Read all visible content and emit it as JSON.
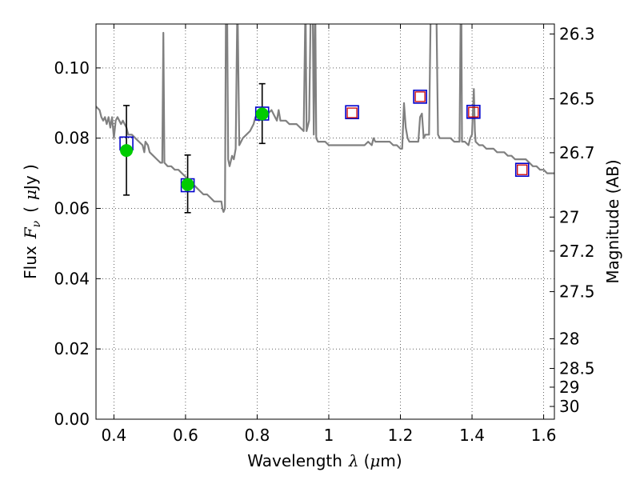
{
  "chart_data": {
    "type": "scatter",
    "xlabel": {
      "prefix": "Wavelength",
      "symbol": "λ",
      "unit_open": "(",
      "unit_mu": "μ",
      "unit_rest": "m)"
    },
    "ylabel": {
      "prefix": "Flux",
      "symbol": "F",
      "subscript": "ν",
      "unit_open": "(",
      "unit_mu": "μ",
      "unit_rest": "Jy )"
    },
    "y2label": "Magnitude (AB)",
    "xlim": [
      0.35,
      1.63
    ],
    "ylim": [
      0.0,
      0.1125
    ],
    "grid": true,
    "x_ticks": [
      {
        "value": 0.4,
        "label": "0.4"
      },
      {
        "value": 0.6,
        "label": "0.6"
      },
      {
        "value": 0.8,
        "label": "0.8"
      },
      {
        "value": 1.0,
        "label": "1"
      },
      {
        "value": 1.2,
        "label": "1.2"
      },
      {
        "value": 1.4,
        "label": "1.4"
      },
      {
        "value": 1.6,
        "label": "1.6"
      }
    ],
    "y_ticks": [
      {
        "value": 0.0,
        "label": "0.00"
      },
      {
        "value": 0.02,
        "label": "0.02"
      },
      {
        "value": 0.04,
        "label": "0.04"
      },
      {
        "value": 0.06,
        "label": "0.06"
      },
      {
        "value": 0.08,
        "label": "0.08"
      },
      {
        "value": 0.1,
        "label": "0.10"
      }
    ],
    "y2_ticks": [
      {
        "value": 26.3,
        "label": "26.3"
      },
      {
        "value": 26.5,
        "label": "26.5"
      },
      {
        "value": 26.7,
        "label": "26.7"
      },
      {
        "value": 27.0,
        "label": "27"
      },
      {
        "value": 27.2,
        "label": "27.2"
      },
      {
        "value": 27.5,
        "label": "27.5"
      },
      {
        "value": 28.0,
        "label": "28"
      },
      {
        "value": 28.5,
        "label": "28.5"
      },
      {
        "value": 29.0,
        "label": "29"
      },
      {
        "value": 30.0,
        "label": "30"
      }
    ],
    "series": [
      {
        "kind": "model_spectrum",
        "color": "#808080",
        "points": [
          [
            0.35,
            0.089
          ],
          [
            0.36,
            0.088
          ],
          [
            0.365,
            0.086
          ],
          [
            0.37,
            0.085
          ],
          [
            0.375,
            0.086
          ],
          [
            0.38,
            0.084
          ],
          [
            0.385,
            0.086
          ],
          [
            0.39,
            0.083
          ],
          [
            0.395,
            0.086
          ],
          [
            0.4,
            0.08
          ],
          [
            0.405,
            0.085
          ],
          [
            0.41,
            0.086
          ],
          [
            0.415,
            0.085
          ],
          [
            0.42,
            0.084
          ],
          [
            0.425,
            0.085
          ],
          [
            0.43,
            0.084
          ],
          [
            0.435,
            0.083
          ],
          [
            0.44,
            0.081
          ],
          [
            0.45,
            0.081
          ],
          [
            0.46,
            0.08
          ],
          [
            0.47,
            0.079
          ],
          [
            0.48,
            0.078
          ],
          [
            0.485,
            0.076
          ],
          [
            0.488,
            0.079
          ],
          [
            0.495,
            0.078
          ],
          [
            0.5,
            0.076
          ],
          [
            0.51,
            0.075
          ],
          [
            0.52,
            0.074
          ],
          [
            0.53,
            0.073
          ],
          [
            0.535,
            0.073
          ],
          [
            0.538,
            0.11
          ],
          [
            0.541,
            0.073
          ],
          [
            0.55,
            0.072
          ],
          [
            0.56,
            0.072
          ],
          [
            0.57,
            0.071
          ],
          [
            0.58,
            0.071
          ],
          [
            0.59,
            0.07
          ],
          [
            0.6,
            0.069
          ],
          [
            0.61,
            0.068
          ],
          [
            0.62,
            0.067
          ],
          [
            0.63,
            0.066
          ],
          [
            0.64,
            0.065
          ],
          [
            0.65,
            0.064
          ],
          [
            0.66,
            0.064
          ],
          [
            0.67,
            0.063
          ],
          [
            0.68,
            0.062
          ],
          [
            0.69,
            0.062
          ],
          [
            0.7,
            0.062
          ],
          [
            0.703,
            0.06
          ],
          [
            0.706,
            0.059
          ],
          [
            0.71,
            0.06
          ],
          [
            0.713,
            0.12
          ],
          [
            0.716,
            0.12
          ],
          [
            0.719,
            0.074
          ],
          [
            0.723,
            0.072
          ],
          [
            0.73,
            0.075
          ],
          [
            0.735,
            0.074
          ],
          [
            0.74,
            0.077
          ],
          [
            0.745,
            0.12
          ],
          [
            0.75,
            0.078
          ],
          [
            0.76,
            0.08
          ],
          [
            0.77,
            0.081
          ],
          [
            0.78,
            0.082
          ],
          [
            0.79,
            0.084
          ],
          [
            0.795,
            0.086
          ],
          [
            0.8,
            0.086
          ],
          [
            0.805,
            0.085
          ],
          [
            0.81,
            0.086
          ],
          [
            0.82,
            0.087
          ],
          [
            0.83,
            0.087
          ],
          [
            0.84,
            0.088
          ],
          [
            0.85,
            0.086
          ],
          [
            0.855,
            0.085
          ],
          [
            0.86,
            0.088
          ],
          [
            0.865,
            0.085
          ],
          [
            0.87,
            0.085
          ],
          [
            0.88,
            0.085
          ],
          [
            0.89,
            0.084
          ],
          [
            0.9,
            0.084
          ],
          [
            0.91,
            0.084
          ],
          [
            0.92,
            0.083
          ],
          [
            0.93,
            0.082
          ],
          [
            0.935,
            0.12
          ],
          [
            0.938,
            0.082
          ],
          [
            0.945,
            0.085
          ],
          [
            0.95,
            0.12
          ],
          [
            0.955,
            0.12
          ],
          [
            0.958,
            0.081
          ],
          [
            0.962,
            0.12
          ],
          [
            0.965,
            0.08
          ],
          [
            0.97,
            0.079
          ],
          [
            0.98,
            0.079
          ],
          [
            0.99,
            0.079
          ],
          [
            1.0,
            0.078
          ],
          [
            1.01,
            0.078
          ],
          [
            1.02,
            0.078
          ],
          [
            1.03,
            0.078
          ],
          [
            1.04,
            0.078
          ],
          [
            1.05,
            0.078
          ],
          [
            1.06,
            0.078
          ],
          [
            1.07,
            0.078
          ],
          [
            1.08,
            0.078
          ],
          [
            1.09,
            0.078
          ],
          [
            1.1,
            0.078
          ],
          [
            1.11,
            0.079
          ],
          [
            1.12,
            0.078
          ],
          [
            1.125,
            0.08
          ],
          [
            1.13,
            0.079
          ],
          [
            1.14,
            0.079
          ],
          [
            1.15,
            0.079
          ],
          [
            1.16,
            0.079
          ],
          [
            1.17,
            0.079
          ],
          [
            1.18,
            0.078
          ],
          [
            1.19,
            0.078
          ],
          [
            1.2,
            0.077
          ],
          [
            1.205,
            0.077
          ],
          [
            1.21,
            0.09
          ],
          [
            1.215,
            0.083
          ],
          [
            1.22,
            0.08
          ],
          [
            1.225,
            0.079
          ],
          [
            1.23,
            0.079
          ],
          [
            1.24,
            0.079
          ],
          [
            1.25,
            0.079
          ],
          [
            1.255,
            0.086
          ],
          [
            1.26,
            0.087
          ],
          [
            1.265,
            0.08
          ],
          [
            1.27,
            0.081
          ],
          [
            1.28,
            0.081
          ],
          [
            1.285,
            0.12
          ],
          [
            1.29,
            0.12
          ],
          [
            1.3,
            0.12
          ],
          [
            1.305,
            0.081
          ],
          [
            1.31,
            0.08
          ],
          [
            1.32,
            0.08
          ],
          [
            1.33,
            0.08
          ],
          [
            1.34,
            0.08
          ],
          [
            1.35,
            0.079
          ],
          [
            1.36,
            0.079
          ],
          [
            1.365,
            0.079
          ],
          [
            1.368,
            0.112
          ],
          [
            1.37,
            0.12
          ],
          [
            1.372,
            0.079
          ],
          [
            1.38,
            0.079
          ],
          [
            1.39,
            0.078
          ],
          [
            1.395,
            0.08
          ],
          [
            1.4,
            0.081
          ],
          [
            1.405,
            0.094
          ],
          [
            1.408,
            0.082
          ],
          [
            1.41,
            0.079
          ],
          [
            1.42,
            0.078
          ],
          [
            1.43,
            0.078
          ],
          [
            1.44,
            0.077
          ],
          [
            1.45,
            0.077
          ],
          [
            1.46,
            0.077
          ],
          [
            1.47,
            0.076
          ],
          [
            1.48,
            0.076
          ],
          [
            1.49,
            0.076
          ],
          [
            1.5,
            0.075
          ],
          [
            1.51,
            0.075
          ],
          [
            1.52,
            0.074
          ],
          [
            1.53,
            0.074
          ],
          [
            1.54,
            0.074
          ],
          [
            1.55,
            0.074
          ],
          [
            1.56,
            0.073
          ],
          [
            1.57,
            0.072
          ],
          [
            1.58,
            0.072
          ],
          [
            1.59,
            0.071
          ],
          [
            1.6,
            0.071
          ],
          [
            1.61,
            0.07
          ],
          [
            1.62,
            0.07
          ],
          [
            1.63,
            0.07
          ]
        ]
      },
      {
        "kind": "observed_flux",
        "color": "#00cc00",
        "points": [
          {
            "x": 0.435,
            "y": 0.0765,
            "err_low": 0.0638,
            "err_high": 0.0893
          },
          {
            "x": 0.606,
            "y": 0.0668,
            "err_low": 0.0588,
            "err_high": 0.0752
          },
          {
            "x": 0.814,
            "y": 0.0869,
            "err_low": 0.0785,
            "err_high": 0.0955
          }
        ]
      },
      {
        "kind": "model_band_flux",
        "color": "#0000cc",
        "points": [
          {
            "x": 0.435,
            "y": 0.0785
          },
          {
            "x": 0.606,
            "y": 0.0666
          },
          {
            "x": 0.814,
            "y": 0.087
          },
          {
            "x": 1.065,
            "y": 0.0874
          },
          {
            "x": 1.255,
            "y": 0.0918
          },
          {
            "x": 1.404,
            "y": 0.0875
          },
          {
            "x": 1.54,
            "y": 0.071
          }
        ]
      },
      {
        "kind": "predicted_flux",
        "color": "#cc0000",
        "points": [
          {
            "x": 1.065,
            "y": 0.0872
          },
          {
            "x": 1.255,
            "y": 0.0918
          },
          {
            "x": 1.404,
            "y": 0.0874
          },
          {
            "x": 1.54,
            "y": 0.071
          }
        ]
      }
    ]
  }
}
